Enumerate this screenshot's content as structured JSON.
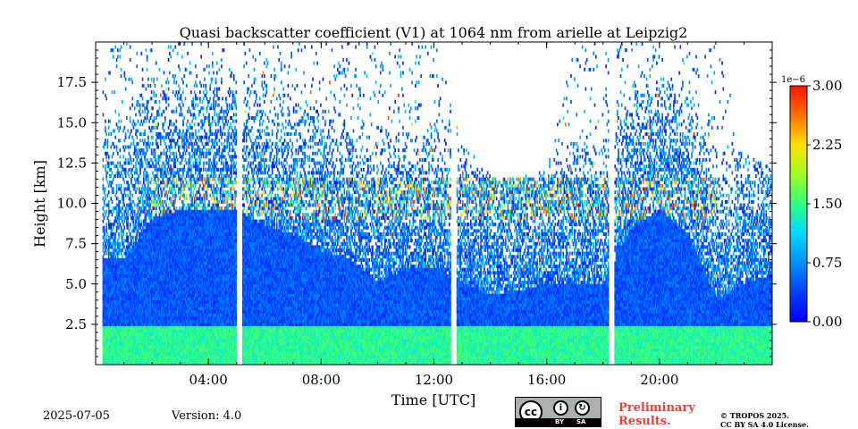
{
  "chart_data": {
    "type": "heatmap",
    "title": "Quasi backscatter coefficient (V1) at 1064 nm from arielle at Leipzig2",
    "xlabel": "Time [UTC]",
    "ylabel": "Height [km]",
    "xlim_hours": [
      0,
      24
    ],
    "ylim_km": [
      0,
      20
    ],
    "x_ticks": [
      {
        "value": 4,
        "label": "04:00"
      },
      {
        "value": 8,
        "label": "08:00"
      },
      {
        "value": 12,
        "label": "12:00"
      },
      {
        "value": 16,
        "label": "16:00"
      },
      {
        "value": 20,
        "label": "20:00"
      }
    ],
    "y_ticks": [
      {
        "value": 2.5,
        "label": "2.5"
      },
      {
        "value": 5.0,
        "label": "5.0"
      },
      {
        "value": 7.5,
        "label": "7.5"
      },
      {
        "value": 10.0,
        "label": "10.0"
      },
      {
        "value": 12.5,
        "label": "12.5"
      },
      {
        "value": 15.0,
        "label": "15.0"
      },
      {
        "value": 17.5,
        "label": "17.5"
      }
    ],
    "colorbar": {
      "min": 0.0,
      "max": 3.0,
      "exponent_label": "1e−6",
      "ticks": [
        {
          "value": 0.0,
          "label": "0.00"
        },
        {
          "value": 0.75,
          "label": "0.75"
        },
        {
          "value": 1.5,
          "label": "1.50"
        },
        {
          "value": 2.25,
          "label": "2.25"
        },
        {
          "value": 3.0,
          "label": "3.00"
        }
      ],
      "colormap": "jet"
    },
    "data_gaps_hours": [
      [
        0.0,
        0.25
      ],
      [
        5.0,
        5.2
      ],
      [
        12.6,
        12.8
      ],
      [
        18.2,
        18.4
      ]
    ],
    "cloud_layer_km": [
      9.0,
      11.5
    ],
    "clear_signal_top_km": [
      {
        "t": 0,
        "h": 20
      },
      {
        "t": 1,
        "h": 20
      },
      {
        "t": 2,
        "h": 20
      },
      {
        "t": 3,
        "h": 20
      },
      {
        "t": 4,
        "h": 20
      },
      {
        "t": 5,
        "h": 20
      },
      {
        "t": 6,
        "h": 20
      },
      {
        "t": 7,
        "h": 20
      },
      {
        "t": 8,
        "h": 20
      },
      {
        "t": 9,
        "h": 20
      },
      {
        "t": 10,
        "h": 20
      },
      {
        "t": 11,
        "h": 20
      },
      {
        "t": 12,
        "h": 20
      },
      {
        "t": 13,
        "h": 14
      },
      {
        "t": 14,
        "h": 11.5
      },
      {
        "t": 15,
        "h": 11.5
      },
      {
        "t": 16,
        "h": 12
      },
      {
        "t": 17,
        "h": 20
      },
      {
        "t": 18,
        "h": 20
      },
      {
        "t": 19,
        "h": 20
      },
      {
        "t": 20,
        "h": 20
      },
      {
        "t": 21,
        "h": 20
      },
      {
        "t": 22,
        "h": 20
      },
      {
        "t": 23,
        "h": 13
      },
      {
        "t": 24,
        "h": 12
      }
    ],
    "dense_top_km": [
      {
        "t": 0,
        "h": 6.5
      },
      {
        "t": 1,
        "h": 6.5
      },
      {
        "t": 2,
        "h": 9
      },
      {
        "t": 3,
        "h": 9.5
      },
      {
        "t": 4,
        "h": 9.5
      },
      {
        "t": 5,
        "h": 9.5
      },
      {
        "t": 6,
        "h": 8.5
      },
      {
        "t": 7,
        "h": 8.0
      },
      {
        "t": 8,
        "h": 7.0
      },
      {
        "t": 9,
        "h": 6.5
      },
      {
        "t": 10,
        "h": 5.0
      },
      {
        "t": 11,
        "h": 5.8
      },
      {
        "t": 12,
        "h": 6.0
      },
      {
        "t": 13,
        "h": 5.0
      },
      {
        "t": 14,
        "h": 4.3
      },
      {
        "t": 15,
        "h": 4.5
      },
      {
        "t": 16,
        "h": 5.0
      },
      {
        "t": 17,
        "h": 5.0
      },
      {
        "t": 18,
        "h": 5.0
      },
      {
        "t": 19,
        "h": 8.5
      },
      {
        "t": 20,
        "h": 9.5
      },
      {
        "t": 21,
        "h": 8.0
      },
      {
        "t": 22,
        "h": 4.0
      },
      {
        "t": 23,
        "h": 5.0
      },
      {
        "t": 24,
        "h": 5.5
      }
    ],
    "boundary_layer_top_km": 2.2
  },
  "footer": {
    "date": "2025-07-05",
    "version": "Version: 4.0",
    "preliminary_line1": "Preliminary",
    "preliminary_line2": "Results.",
    "license_line1": "© TROPOS 2025.",
    "license_line2": "CC BY SA 4.0 License."
  },
  "cc_badge": {
    "cc": "cc",
    "by": "BY",
    "sa": "SA"
  },
  "colors": {
    "background": "#ffffff",
    "preliminary": "#e8403a"
  }
}
